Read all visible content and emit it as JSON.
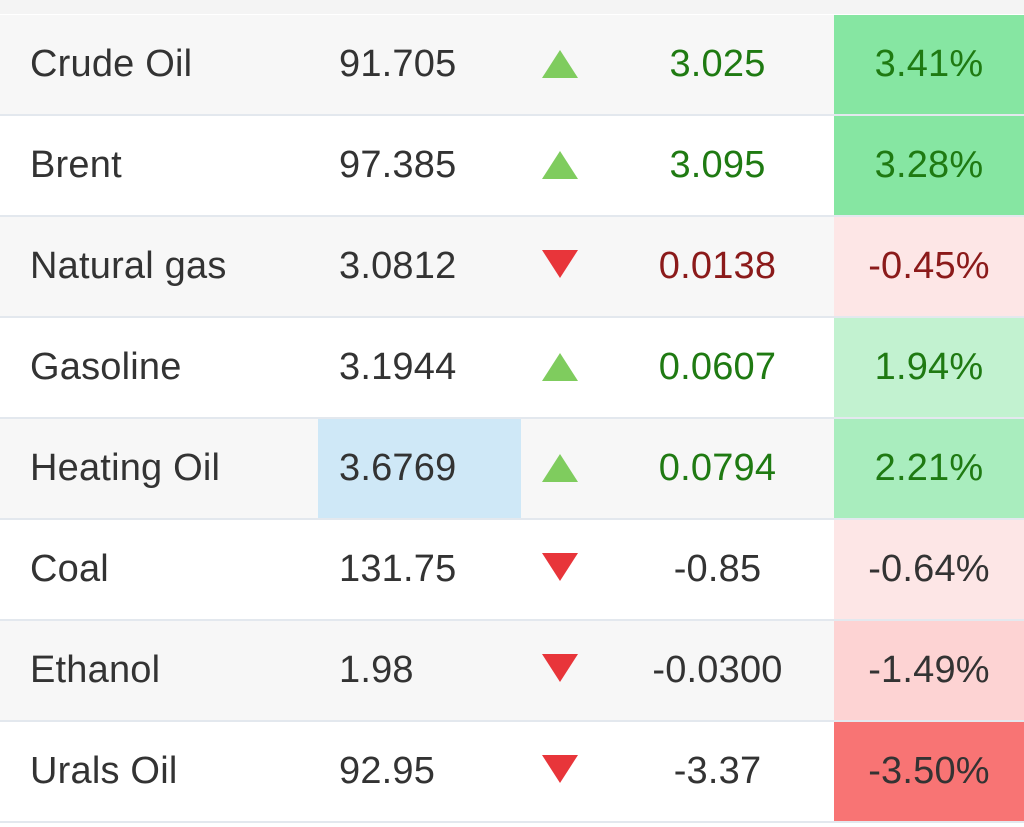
{
  "colors": {
    "positive_text": "#1f7a12",
    "negative_text": "#8b1a1a",
    "up_arrow": "#7fcc5e",
    "down_arrow": "#e8353a",
    "highlight_cell": "#cfe8f7"
  },
  "rows": [
    {
      "name": "Crude Oil",
      "last": "91.705",
      "direction": "up",
      "change": "3.025",
      "percent": "3.41%",
      "change_style": "positive",
      "percent_bg": "#86e6a2",
      "percent_style": "positive"
    },
    {
      "name": "Brent",
      "last": "97.385",
      "direction": "up",
      "change": "3.095",
      "percent": "3.28%",
      "change_style": "positive",
      "percent_bg": "#86e6a2",
      "percent_style": "positive"
    },
    {
      "name": "Natural gas",
      "last": "3.0812",
      "direction": "down",
      "change": "0.0138",
      "percent": "-0.45%",
      "change_style": "negative",
      "percent_bg": "#fde6e6",
      "percent_style": "negative"
    },
    {
      "name": "Gasoline",
      "last": "3.1944",
      "direction": "up",
      "change": "0.0607",
      "percent": "1.94%",
      "change_style": "positive",
      "percent_bg": "#c2f2d0",
      "percent_style": "positive"
    },
    {
      "name": "Heating Oil",
      "last": "3.6769",
      "direction": "up",
      "change": "0.0794",
      "percent": "2.21%",
      "change_style": "positive",
      "percent_bg": "#a9edbe",
      "percent_style": "positive",
      "last_highlight": true
    },
    {
      "name": "Coal",
      "last": "131.75",
      "direction": "down",
      "change": "-0.85",
      "percent": "-0.64%",
      "change_style": "neutral",
      "percent_bg": "#fde6e6",
      "percent_style": "neutral"
    },
    {
      "name": "Ethanol",
      "last": "1.98",
      "direction": "down",
      "change": "-0.0300",
      "percent": "-1.49%",
      "change_style": "neutral",
      "percent_bg": "#fdd3d3",
      "percent_style": "neutral"
    },
    {
      "name": "Urals Oil",
      "last": "92.95",
      "direction": "down",
      "change": "-3.37",
      "percent": "-3.50%",
      "change_style": "neutral",
      "percent_bg": "#f87474",
      "percent_style": "neutral"
    }
  ]
}
